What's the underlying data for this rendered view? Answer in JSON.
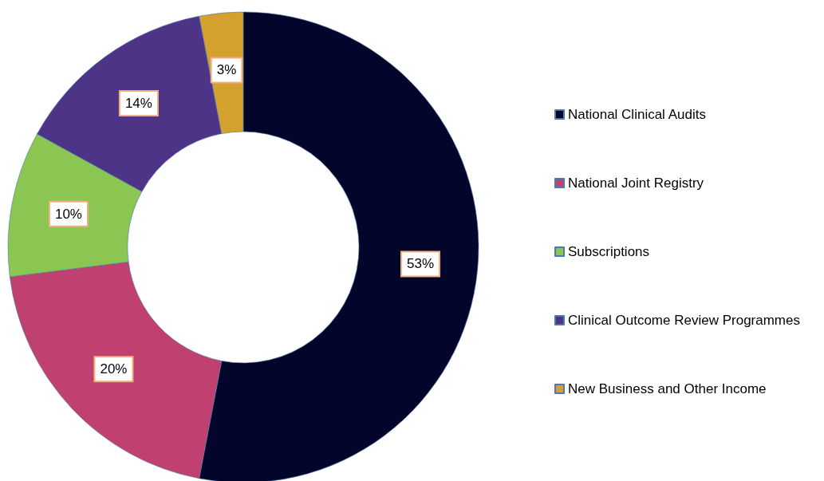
{
  "chart_data": {
    "type": "donut",
    "categories": [
      "National Clinical Audits",
      "National Joint Registry",
      "Subscriptions",
      "Clinical Outcome Review Programmes",
      "New Business and Other Income"
    ],
    "values": [
      53,
      20,
      10,
      14,
      3
    ],
    "colors": [
      "#03052b",
      "#c0406f",
      "#8bc653",
      "#4e3487",
      "#d4a02e"
    ],
    "value_labels": [
      "53%",
      "20%",
      "10%",
      "14%",
      "3%"
    ],
    "legend": "right"
  }
}
